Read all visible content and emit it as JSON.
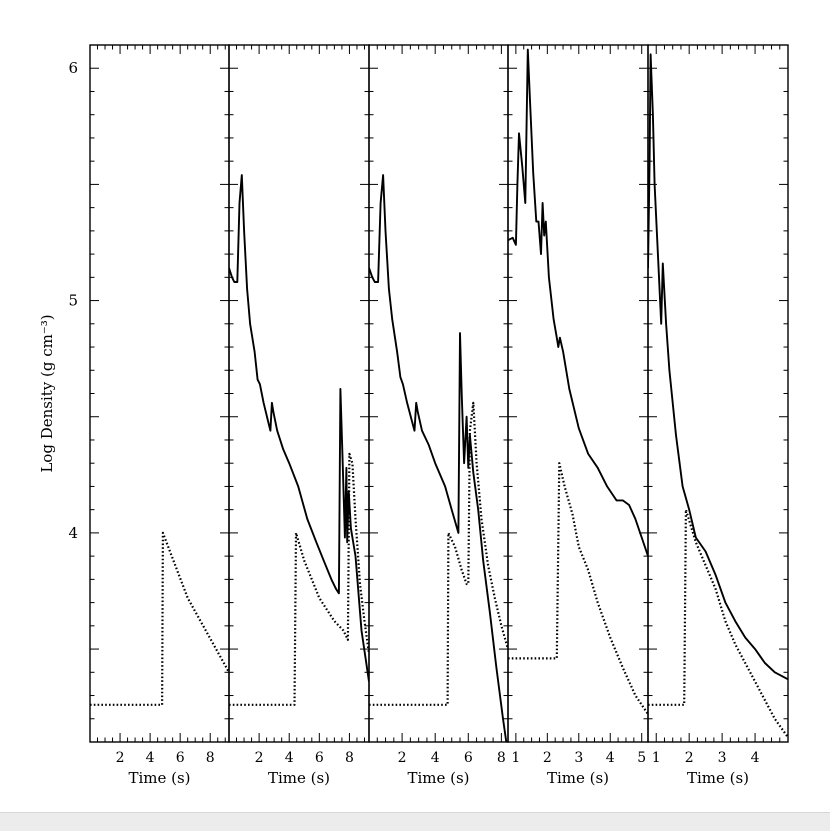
{
  "figure": {
    "ylabel": "Log Density (g cm⁻³)"
  },
  "chart_data": [
    {
      "type": "line",
      "xlabel": "Time (s)",
      "ylabel": "Log Density (g cm⁻³)",
      "xlim": [
        0,
        9.25
      ],
      "ylim": [
        3.1,
        6.1
      ],
      "xticks": [
        2,
        4,
        6,
        8
      ],
      "yticks": [
        4,
        5,
        6
      ],
      "series": [
        {
          "style": "dotted",
          "points": [
            [
              0,
              3.26
            ],
            [
              4.8,
              3.26
            ],
            [
              4.85,
              4.0
            ],
            [
              6.5,
              3.72
            ],
            [
              9.25,
              3.4
            ]
          ]
        }
      ]
    },
    {
      "type": "line",
      "xlabel": "Time (s)",
      "xlim": [
        0,
        9.3
      ],
      "ylim": [
        3.1,
        6.1
      ],
      "xticks": [
        2,
        4,
        6,
        8
      ],
      "series": [
        {
          "style": "solid",
          "points": [
            [
              0,
              5.14
            ],
            [
              0.2,
              5.1
            ],
            [
              0.35,
              5.08
            ],
            [
              0.55,
              5.08
            ],
            [
              0.7,
              5.42
            ],
            [
              0.85,
              5.54
            ],
            [
              1.0,
              5.3
            ],
            [
              1.2,
              5.05
            ],
            [
              1.4,
              4.9
            ],
            [
              1.7,
              4.78
            ],
            [
              1.9,
              4.66
            ],
            [
              2.05,
              4.64
            ],
            [
              2.3,
              4.56
            ],
            [
              2.6,
              4.48
            ],
            [
              2.75,
              4.44
            ],
            [
              2.85,
              4.56
            ],
            [
              2.95,
              4.52
            ],
            [
              3.2,
              4.44
            ],
            [
              3.6,
              4.36
            ],
            [
              4.0,
              4.3
            ],
            [
              4.6,
              4.2
            ],
            [
              5.2,
              4.06
            ],
            [
              5.8,
              3.96
            ],
            [
              6.3,
              3.88
            ],
            [
              6.8,
              3.8
            ],
            [
              7.1,
              3.76
            ],
            [
              7.3,
              3.74
            ],
            [
              7.4,
              4.62
            ],
            [
              7.55,
              4.3
            ],
            [
              7.7,
              3.98
            ],
            [
              7.8,
              4.28
            ],
            [
              7.85,
              3.96
            ],
            [
              7.95,
              4.18
            ],
            [
              8.1,
              4.02
            ],
            [
              8.4,
              3.9
            ],
            [
              8.8,
              3.58
            ],
            [
              9.3,
              3.36
            ]
          ]
        },
        {
          "style": "dotted",
          "points": [
            [
              0,
              3.26
            ],
            [
              4.35,
              3.26
            ],
            [
              4.45,
              4.0
            ],
            [
              5.0,
              3.88
            ],
            [
              6.0,
              3.72
            ],
            [
              7.0,
              3.62
            ],
            [
              7.6,
              3.58
            ],
            [
              7.9,
              3.54
            ],
            [
              8.0,
              4.34
            ],
            [
              8.2,
              4.3
            ],
            [
              8.4,
              4.06
            ],
            [
              8.7,
              3.78
            ],
            [
              9.0,
              3.62
            ],
            [
              9.3,
              3.48
            ]
          ]
        }
      ]
    },
    {
      "type": "line",
      "xlabel": "Time (s)",
      "xlim": [
        0,
        8.4
      ],
      "ylim": [
        3.1,
        6.1
      ],
      "xticks": [
        2,
        4,
        6,
        8
      ],
      "series": [
        {
          "style": "solid",
          "points": [
            [
              0,
              5.14
            ],
            [
              0.2,
              5.1
            ],
            [
              0.35,
              5.08
            ],
            [
              0.55,
              5.08
            ],
            [
              0.7,
              5.42
            ],
            [
              0.85,
              5.54
            ],
            [
              1.0,
              5.3
            ],
            [
              1.2,
              5.05
            ],
            [
              1.4,
              4.92
            ],
            [
              1.7,
              4.78
            ],
            [
              1.9,
              4.67
            ],
            [
              2.05,
              4.64
            ],
            [
              2.3,
              4.56
            ],
            [
              2.6,
              4.48
            ],
            [
              2.75,
              4.44
            ],
            [
              2.85,
              4.56
            ],
            [
              2.95,
              4.52
            ],
            [
              3.2,
              4.44
            ],
            [
              3.6,
              4.38
            ],
            [
              4.0,
              4.3
            ],
            [
              4.6,
              4.2
            ],
            [
              5.0,
              4.1
            ],
            [
              5.4,
              4.0
            ],
            [
              5.5,
              4.86
            ],
            [
              5.6,
              4.6
            ],
            [
              5.75,
              4.3
            ],
            [
              5.9,
              4.5
            ],
            [
              6.0,
              4.28
            ],
            [
              6.1,
              4.42
            ],
            [
              6.3,
              4.26
            ],
            [
              6.6,
              4.1
            ],
            [
              6.9,
              3.88
            ],
            [
              7.3,
              3.66
            ],
            [
              7.7,
              3.42
            ],
            [
              8.1,
              3.2
            ],
            [
              8.3,
              3.1
            ]
          ]
        },
        {
          "style": "dotted",
          "points": [
            [
              0,
              3.26
            ],
            [
              4.75,
              3.26
            ],
            [
              4.8,
              4.0
            ],
            [
              5.2,
              3.94
            ],
            [
              5.6,
              3.84
            ],
            [
              5.9,
              3.78
            ],
            [
              6.0,
              3.78
            ],
            [
              6.1,
              4.44
            ],
            [
              6.3,
              4.56
            ],
            [
              6.5,
              4.3
            ],
            [
              6.8,
              4.06
            ],
            [
              7.2,
              3.86
            ],
            [
              7.6,
              3.72
            ],
            [
              8.0,
              3.6
            ],
            [
              8.4,
              3.5
            ]
          ]
        }
      ]
    },
    {
      "type": "line",
      "xlabel": "Time (s)",
      "xlim": [
        0.75,
        5.2
      ],
      "ylim": [
        3.1,
        6.1
      ],
      "xticks": [
        1,
        2,
        3,
        4,
        5
      ],
      "series": [
        {
          "style": "solid",
          "points": [
            [
              0.75,
              5.26
            ],
            [
              0.9,
              5.27
            ],
            [
              1.0,
              5.24
            ],
            [
              1.05,
              5.5
            ],
            [
              1.1,
              5.72
            ],
            [
              1.2,
              5.58
            ],
            [
              1.3,
              5.42
            ],
            [
              1.38,
              6.08
            ],
            [
              1.45,
              5.86
            ],
            [
              1.55,
              5.55
            ],
            [
              1.65,
              5.34
            ],
            [
              1.72,
              5.34
            ],
            [
              1.8,
              5.2
            ],
            [
              1.85,
              5.42
            ],
            [
              1.9,
              5.28
            ],
            [
              1.95,
              5.34
            ],
            [
              2.05,
              5.1
            ],
            [
              2.2,
              4.92
            ],
            [
              2.3,
              4.84
            ],
            [
              2.35,
              4.8
            ],
            [
              2.4,
              4.84
            ],
            [
              2.5,
              4.78
            ],
            [
              2.7,
              4.62
            ],
            [
              3.0,
              4.45
            ],
            [
              3.3,
              4.34
            ],
            [
              3.6,
              4.28
            ],
            [
              3.9,
              4.2
            ],
            [
              4.2,
              4.14
            ],
            [
              4.4,
              4.14
            ],
            [
              4.6,
              4.12
            ],
            [
              4.8,
              4.06
            ],
            [
              5.0,
              3.98
            ],
            [
              5.2,
              3.9
            ]
          ]
        },
        {
          "style": "dotted",
          "points": [
            [
              0.75,
              3.46
            ],
            [
              2.3,
              3.46
            ],
            [
              2.38,
              4.3
            ],
            [
              2.55,
              4.2
            ],
            [
              2.8,
              4.08
            ],
            [
              3.0,
              3.94
            ],
            [
              3.3,
              3.84
            ],
            [
              3.6,
              3.7
            ],
            [
              4.0,
              3.55
            ],
            [
              4.4,
              3.42
            ],
            [
              4.8,
              3.3
            ],
            [
              5.2,
              3.22
            ]
          ]
        }
      ]
    },
    {
      "type": "line",
      "xlabel": "Time (s)",
      "xlim": [
        0.75,
        5.0
      ],
      "ylim": [
        3.1,
        6.1
      ],
      "xticks": [
        1,
        2,
        3,
        4
      ],
      "series": [
        {
          "style": "solid",
          "points": [
            [
              0.75,
              5.14
            ],
            [
              0.8,
              5.6
            ],
            [
              0.83,
              6.06
            ],
            [
              0.9,
              5.8
            ],
            [
              0.95,
              5.5
            ],
            [
              1.05,
              5.2
            ],
            [
              1.15,
              4.9
            ],
            [
              1.2,
              5.16
            ],
            [
              1.3,
              4.9
            ],
            [
              1.4,
              4.7
            ],
            [
              1.6,
              4.42
            ],
            [
              1.8,
              4.2
            ],
            [
              2.0,
              4.1
            ],
            [
              2.2,
              3.98
            ],
            [
              2.5,
              3.92
            ],
            [
              2.8,
              3.82
            ],
            [
              3.1,
              3.7
            ],
            [
              3.4,
              3.62
            ],
            [
              3.7,
              3.55
            ],
            [
              4.0,
              3.5
            ],
            [
              4.3,
              3.44
            ],
            [
              4.6,
              3.4
            ],
            [
              5.0,
              3.37
            ]
          ]
        },
        {
          "style": "dotted",
          "points": [
            [
              0.75,
              3.26
            ],
            [
              1.85,
              3.26
            ],
            [
              1.9,
              4.1
            ],
            [
              2.2,
              3.96
            ],
            [
              2.5,
              3.86
            ],
            [
              2.8,
              3.76
            ],
            [
              3.1,
              3.62
            ],
            [
              3.4,
              3.52
            ],
            [
              3.7,
              3.44
            ],
            [
              4.0,
              3.36
            ],
            [
              4.3,
              3.28
            ],
            [
              4.6,
              3.2
            ],
            [
              5.0,
              3.12
            ]
          ]
        }
      ]
    }
  ]
}
